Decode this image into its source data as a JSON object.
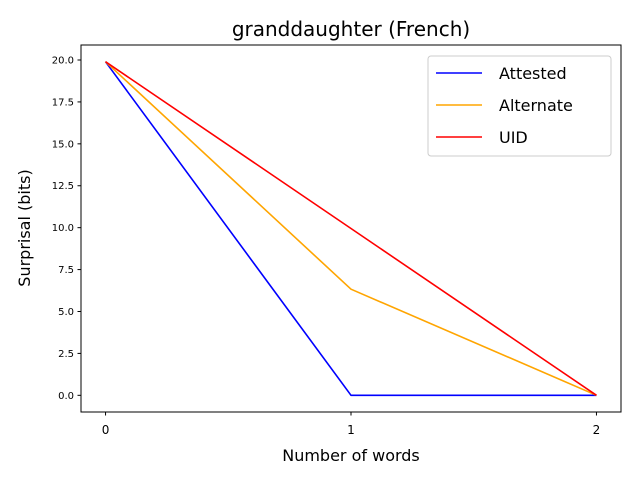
{
  "chart_data": {
    "type": "line",
    "title": "granddaughter (French)",
    "xlabel": "Number of words",
    "ylabel": "Surprisal (bits)",
    "x": [
      0,
      1,
      2
    ],
    "xlim": [
      -0.1,
      2.1
    ],
    "ylim": [
      -0.995,
      20.895
    ],
    "xticks": [
      0,
      1,
      2
    ],
    "xtick_labels": [
      "0",
      "1",
      "2"
    ],
    "yticks": [
      0,
      2.5,
      5,
      7.5,
      10,
      12.5,
      15,
      17.5,
      20
    ],
    "ytick_labels": [
      "0.0",
      "2.5",
      "5.0",
      "7.5",
      "10.0",
      "12.5",
      "15.0",
      "17.5",
      "20.0"
    ],
    "grid": false,
    "legend_position": "top-right",
    "series": [
      {
        "name": "Attested",
        "color": "#0000ff",
        "values": [
          19.9,
          0.0,
          0.0
        ]
      },
      {
        "name": "Alternate",
        "color": "#ffa500",
        "values": [
          19.9,
          6.33,
          0.0
        ]
      },
      {
        "name": "UID",
        "color": "#ff0000",
        "values": [
          19.9,
          9.95,
          0.0
        ]
      }
    ]
  }
}
